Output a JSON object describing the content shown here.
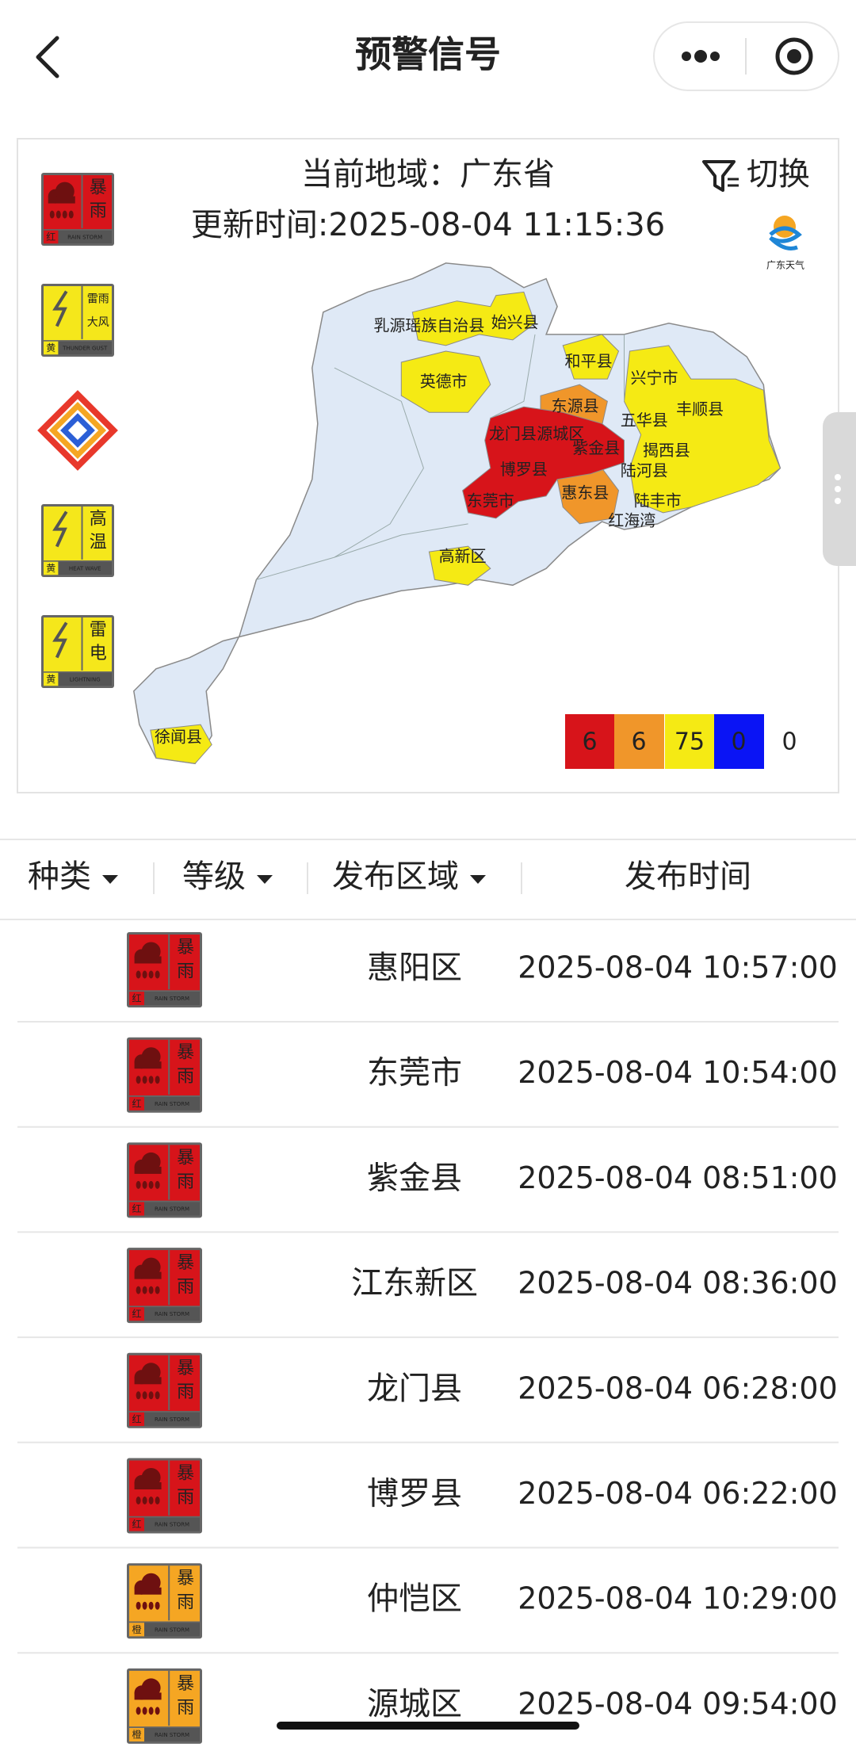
{
  "header": {
    "title": "预警信号"
  },
  "map_panel": {
    "region": "当前地域：广东省",
    "update_time": "更新时间:2025-08-04 11:15:36",
    "switch": "切换",
    "logo_text": "广东天气",
    "side_icons": [
      {
        "lines": [
          "暴",
          "雨"
        ],
        "level": "红",
        "sub": "RAIN STORM",
        "color": "#d7141a"
      },
      {
        "lines": [
          "雷雨",
          "大风"
        ],
        "level": "黄",
        "sub": "THUNDER GUST",
        "color": "#f5e71b"
      },
      {
        "lines": [
          "高",
          "温"
        ],
        "level": "黄",
        "sub": "HEAT WAVE",
        "color": "#f5e71b"
      },
      {
        "lines": [
          "雷",
          "电"
        ],
        "level": "黄",
        "sub": "LIGHTNING",
        "color": "#f5e71b"
      }
    ],
    "map_labels": [
      "乳源瑶族自治县",
      "始兴县",
      "英德市",
      "和平县",
      "东源县",
      "兴宁市",
      "龙门县",
      "源城区",
      "紫金县",
      "五华县",
      "丰顺县",
      "揭西县",
      "博罗县",
      "陆河县",
      "惠东县",
      "东莞市",
      "陆丰市",
      "红海湾",
      "高新区",
      "徐闻县"
    ],
    "legend": [
      {
        "color": "#d7141a",
        "count": 6
      },
      {
        "color": "#f0962a",
        "count": 6
      },
      {
        "color": "#f5ea14",
        "count": 75
      },
      {
        "color": "#0a14f5",
        "count": 0
      }
    ],
    "legend_none": 0
  },
  "table": {
    "headers": [
      "种类",
      "等级",
      "发布区域",
      "发布时间"
    ],
    "rows": [
      {
        "lines": [
          "暴",
          "雨"
        ],
        "level": "红",
        "sub": "RAIN STORM",
        "color": "#d7141a",
        "area": "惠阳区",
        "time": "2025-08-04 10:57:00"
      },
      {
        "lines": [
          "暴",
          "雨"
        ],
        "level": "红",
        "sub": "RAIN STORM",
        "color": "#d7141a",
        "area": "东莞市",
        "time": "2025-08-04 10:54:00"
      },
      {
        "lines": [
          "暴",
          "雨"
        ],
        "level": "红",
        "sub": "RAIN STORM",
        "color": "#d7141a",
        "area": "紫金县",
        "time": "2025-08-04 08:51:00"
      },
      {
        "lines": [
          "暴",
          "雨"
        ],
        "level": "红",
        "sub": "RAIN STORM",
        "color": "#d7141a",
        "area": "江东新区",
        "time": "2025-08-04 08:36:00"
      },
      {
        "lines": [
          "暴",
          "雨"
        ],
        "level": "红",
        "sub": "RAIN STORM",
        "color": "#d7141a",
        "area": "龙门县",
        "time": "2025-08-04 06:28:00"
      },
      {
        "lines": [
          "暴",
          "雨"
        ],
        "level": "红",
        "sub": "RAIN STORM",
        "color": "#d7141a",
        "area": "博罗县",
        "time": "2025-08-04 06:22:00"
      },
      {
        "lines": [
          "暴",
          "雨"
        ],
        "level": "橙",
        "sub": "RAIN STORM",
        "color": "#f5a623",
        "area": "仲恺区",
        "time": "2025-08-04 10:29:00"
      },
      {
        "lines": [
          "暴",
          "雨"
        ],
        "level": "橙",
        "sub": "RAIN STORM",
        "color": "#f5a623",
        "area": "源城区",
        "time": "2025-08-04 09:54:00"
      }
    ]
  }
}
